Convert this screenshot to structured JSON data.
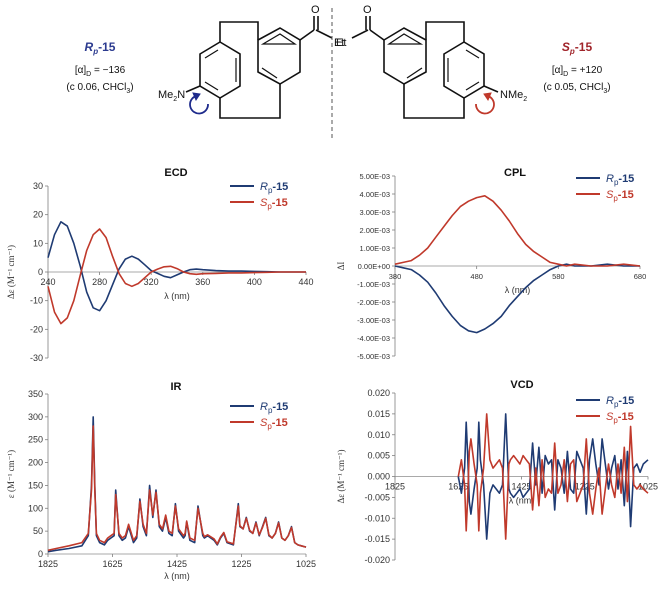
{
  "header": {
    "left": {
      "compound_prefix": "R",
      "compound_sub": "p",
      "compound_suffix": "-15",
      "rotation_line_a": "[α]",
      "rotation_line_a_sub": "D",
      "rotation_line_a_value": " = −136",
      "rotation_line_b": "(c 0.06, CHCl",
      "rotation_line_b_sub": "3",
      "rotation_line_b_end": ")",
      "color": "#2b3a8f",
      "rotation_arrow_color": "#1e2b8c"
    },
    "right": {
      "compound_prefix": "S",
      "compound_sub": "p",
      "compound_suffix": "-15",
      "rotation_line_a": "[α]",
      "rotation_line_a_sub": "D",
      "rotation_line_a_value": " = +120",
      "rotation_line_b": "(c 0.05, CHCl",
      "rotation_line_b_sub": "3",
      "rotation_line_b_end": ")",
      "color": "#a0242a",
      "rotation_arrow_color": "#c0392b"
    },
    "structure_labels": {
      "left_amine": "Me",
      "left_amine_sub": "2",
      "left_amine_end": "N",
      "left_ketone_o": "O",
      "left_ketone_r": "Et",
      "right_ketone_o": "O",
      "right_ketone_r": "Et",
      "right_amine": "NMe",
      "right_amine_sub": "2"
    }
  },
  "colors": {
    "rp": "#1f3b73",
    "sp": "#c0392b",
    "axis": "#7f7f7f",
    "zero_line": "#8c8c8c"
  },
  "chart_data": [
    {
      "id": "ecd",
      "type": "line",
      "title": "ECD",
      "xlabel": "λ (nm)",
      "ylabel": "Δε (M⁻¹ cm⁻¹)",
      "xlim": [
        240,
        440
      ],
      "ylim": [
        -30,
        30
      ],
      "xticks": [
        "240",
        "280",
        "320",
        "360",
        "400",
        "440"
      ],
      "yticks": [
        "30",
        "20",
        "10",
        "0",
        "-10",
        "-20",
        "-30"
      ],
      "legend": "top-right",
      "x_axis_at_zero": true,
      "grid": false,
      "series": [
        {
          "name": "Rp-15",
          "legend_prefix": "R",
          "legend_sub": "p",
          "legend_suffix": "-15",
          "color_key": "rp",
          "x": [
            240,
            245,
            250,
            255,
            260,
            265,
            270,
            275,
            280,
            285,
            290,
            295,
            300,
            305,
            310,
            315,
            320,
            325,
            330,
            335,
            340,
            345,
            350,
            355,
            360,
            370,
            380,
            390,
            400,
            410,
            420,
            430,
            440
          ],
          "y": [
            5,
            13,
            17.5,
            16,
            10,
            2,
            -7,
            -12.5,
            -13.5,
            -10,
            -4.5,
            1,
            4.5,
            5.5,
            4.5,
            2.5,
            0.5,
            -0.5,
            -1.5,
            -2,
            -1,
            0,
            0.8,
            1,
            0.8,
            0.5,
            0.3,
            0.3,
            0.2,
            0.1,
            0,
            0,
            0
          ]
        },
        {
          "name": "Sp-15",
          "legend_prefix": "S",
          "legend_sub": "p",
          "legend_suffix": "-15",
          "color_key": "sp",
          "x": [
            240,
            245,
            250,
            255,
            260,
            265,
            270,
            275,
            280,
            285,
            290,
            295,
            300,
            305,
            310,
            315,
            320,
            325,
            330,
            335,
            340,
            345,
            350,
            355,
            360,
            370,
            380,
            390,
            400,
            410,
            420,
            430,
            440
          ],
          "y": [
            -5,
            -14,
            -18,
            -16,
            -10,
            -1,
            7.5,
            13,
            15,
            12,
            5.5,
            -0.5,
            -4,
            -5,
            -4,
            -2,
            0,
            1,
            1.8,
            2,
            1.2,
            0,
            -0.6,
            -0.8,
            -0.6,
            -0.5,
            -0.3,
            -0.3,
            -0.2,
            -0.1,
            0,
            0,
            0
          ]
        }
      ]
    },
    {
      "id": "cpl",
      "type": "line",
      "title": "CPL",
      "xlabel": "λ (nm)",
      "ylabel": "ΔI",
      "xlim": [
        380,
        680
      ],
      "ylim": [
        -0.005,
        0.005
      ],
      "xticks": [
        "380",
        "480",
        "580",
        "680"
      ],
      "yticks": [
        "5.00E-03",
        "4.00E-03",
        "3.00E-03",
        "2.00E-03",
        "1.00E-03",
        "0.00E+00",
        "-1.00E-03",
        "-2.00E-03",
        "-3.00E-03",
        "-4.00E-03",
        "-5.00E-03"
      ],
      "legend": "top-right",
      "x_axis_at_zero": true,
      "grid": false,
      "series": [
        {
          "name": "Rp-15",
          "legend_prefix": "R",
          "legend_sub": "p",
          "legend_suffix": "-15",
          "color_key": "rp",
          "x": [
            380,
            390,
            400,
            410,
            420,
            430,
            440,
            450,
            460,
            470,
            480,
            490,
            500,
            510,
            520,
            530,
            540,
            550,
            560,
            570,
            580,
            590,
            600,
            620,
            640,
            660,
            680
          ],
          "y": [
            0,
            -0.0001,
            -0.0002,
            -0.0005,
            -0.0009,
            -0.0015,
            -0.0022,
            -0.0028,
            -0.0033,
            -0.0036,
            -0.0037,
            -0.0035,
            -0.0032,
            -0.0028,
            -0.0022,
            -0.0017,
            -0.0012,
            -0.0008,
            -0.0005,
            -0.0002,
            0,
            0.0001,
            0,
            0,
            0.0001,
            0,
            0
          ]
        },
        {
          "name": "Sp-15",
          "legend_prefix": "S",
          "legend_sub": "p",
          "legend_suffix": "-15",
          "color_key": "sp",
          "x": [
            380,
            390,
            400,
            410,
            420,
            430,
            440,
            450,
            460,
            470,
            480,
            490,
            500,
            510,
            520,
            530,
            540,
            550,
            560,
            570,
            580,
            590,
            600,
            620,
            640,
            660,
            680
          ],
          "y": [
            0.0001,
            0.0002,
            0.0003,
            0.0006,
            0.001,
            0.0016,
            0.0022,
            0.0028,
            0.0033,
            0.0036,
            0.0038,
            0.0039,
            0.0036,
            0.0031,
            0.0025,
            0.0018,
            0.0012,
            0.0008,
            0.0005,
            0.0002,
            0.0001,
            0,
            0.0001,
            0,
            0,
            0.0001,
            0
          ]
        }
      ]
    },
    {
      "id": "ir",
      "type": "line",
      "title": "IR",
      "xlabel": "λ (nm)",
      "ylabel": "ε (M⁻¹ cm⁻¹)",
      "xlim": [
        1825,
        1025
      ],
      "ylim": [
        0,
        350
      ],
      "xticks": [
        "1825",
        "1625",
        "1425",
        "1225",
        "1025"
      ],
      "yticks": [
        "350",
        "300",
        "250",
        "200",
        "150",
        "100",
        "50",
        "0"
      ],
      "legend": "top-right",
      "x_axis_at_zero": false,
      "grid": false,
      "series": [
        {
          "name": "Rp-15",
          "legend_prefix": "R",
          "legend_sub": "p",
          "legend_suffix": "-15",
          "color_key": "rp",
          "x": [
            1825,
            1800,
            1760,
            1720,
            1700,
            1690,
            1685,
            1680,
            1675,
            1665,
            1650,
            1640,
            1630,
            1620,
            1615,
            1605,
            1595,
            1585,
            1575,
            1560,
            1550,
            1540,
            1530,
            1520,
            1510,
            1500,
            1490,
            1480,
            1470,
            1460,
            1450,
            1440,
            1430,
            1420,
            1405,
            1400,
            1395,
            1385,
            1370,
            1360,
            1345,
            1340,
            1330,
            1310,
            1300,
            1290,
            1280,
            1270,
            1250,
            1235,
            1230,
            1220,
            1210,
            1200,
            1190,
            1180,
            1170,
            1160,
            1150,
            1140,
            1130,
            1120,
            1110,
            1100,
            1090,
            1080,
            1070,
            1060,
            1050,
            1040,
            1025
          ],
          "y": [
            5,
            8,
            12,
            18,
            40,
            150,
            300,
            150,
            40,
            25,
            20,
            30,
            35,
            40,
            140,
            40,
            30,
            35,
            60,
            25,
            35,
            120,
            60,
            40,
            150,
            80,
            140,
            60,
            50,
            80,
            45,
            40,
            110,
            50,
            35,
            40,
            70,
            30,
            25,
            105,
            40,
            35,
            40,
            30,
            20,
            35,
            45,
            25,
            20,
            110,
            60,
            55,
            80,
            50,
            45,
            70,
            40,
            60,
            80,
            40,
            35,
            45,
            70,
            35,
            30,
            40,
            60,
            25,
            20,
            18,
            15
          ]
        },
        {
          "name": "Sp-15",
          "legend_prefix": "S",
          "legend_sub": "p",
          "legend_suffix": "-15",
          "color_key": "sp",
          "x": [
            1825,
            1800,
            1760,
            1720,
            1700,
            1690,
            1685,
            1680,
            1675,
            1665,
            1650,
            1640,
            1630,
            1620,
            1615,
            1605,
            1595,
            1585,
            1575,
            1560,
            1550,
            1540,
            1530,
            1520,
            1510,
            1500,
            1490,
            1480,
            1470,
            1460,
            1450,
            1440,
            1430,
            1420,
            1405,
            1400,
            1395,
            1385,
            1370,
            1360,
            1345,
            1340,
            1330,
            1310,
            1300,
            1290,
            1280,
            1270,
            1250,
            1235,
            1230,
            1220,
            1210,
            1200,
            1190,
            1180,
            1170,
            1160,
            1150,
            1140,
            1130,
            1120,
            1110,
            1100,
            1090,
            1080,
            1070,
            1060,
            1050,
            1040,
            1025
          ],
          "y": [
            8,
            12,
            18,
            25,
            45,
            140,
            280,
            140,
            45,
            30,
            25,
            35,
            40,
            45,
            130,
            45,
            35,
            40,
            65,
            30,
            40,
            115,
            65,
            45,
            140,
            85,
            135,
            65,
            55,
            85,
            50,
            45,
            105,
            55,
            40,
            45,
            72,
            35,
            30,
            100,
            45,
            38,
            42,
            33,
            22,
            37,
            47,
            27,
            22,
            105,
            62,
            55,
            78,
            52,
            45,
            68,
            42,
            58,
            78,
            42,
            35,
            45,
            68,
            35,
            30,
            40,
            58,
            25,
            20,
            18,
            15
          ]
        }
      ]
    },
    {
      "id": "vcd",
      "type": "line",
      "title": "VCD",
      "xlabel": "λ (nm)",
      "ylabel": "Δε (M⁻¹ cm⁻¹)",
      "xlim": [
        1825,
        1025
      ],
      "ylim": [
        -0.02,
        0.02
      ],
      "xticks": [
        "1825",
        "1625",
        "1425",
        "1225",
        "1025"
      ],
      "yticks": [
        "0.020",
        "0.015",
        "0.010",
        "0.005",
        "0.000",
        "-0.005",
        "-0.010",
        "-0.015",
        "-0.020"
      ],
      "legend": "top-right",
      "x_axis_at_zero": true,
      "grid": false,
      "series": [
        {
          "name": "Rp-15",
          "legend_prefix": "R",
          "legend_sub": "p",
          "legend_suffix": "-15",
          "color_key": "rp",
          "x": [
            1625,
            1615,
            1605,
            1600,
            1595,
            1590,
            1585,
            1575,
            1565,
            1560,
            1555,
            1545,
            1535,
            1525,
            1515,
            1505,
            1495,
            1485,
            1475,
            1470,
            1465,
            1460,
            1450,
            1440,
            1430,
            1420,
            1410,
            1400,
            1390,
            1380,
            1370,
            1360,
            1350,
            1340,
            1330,
            1320,
            1310,
            1300,
            1290,
            1280,
            1270,
            1260,
            1250,
            1240,
            1230,
            1220,
            1210,
            1200,
            1190,
            1180,
            1170,
            1160,
            1150,
            1140,
            1130,
            1120,
            1110,
            1100,
            1090,
            1080,
            1070,
            1060,
            1050,
            1040,
            1025
          ],
          "y": [
            0,
            -0.004,
            0.002,
            0.013,
            0.005,
            -0.006,
            -0.009,
            -0.003,
            0.002,
            0.013,
            0.004,
            -0.002,
            -0.015,
            -0.004,
            -0.002,
            -0.003,
            -0.004,
            -0.002,
            0.015,
            0.006,
            -0.003,
            -0.004,
            -0.005,
            -0.004,
            -0.003,
            -0.005,
            -0.004,
            -0.003,
            0.008,
            -0.002,
            0.007,
            -0.004,
            0.005,
            0.003,
            0.004,
            -0.008,
            0.004,
            0.002,
            -0.004,
            0.006,
            -0.003,
            -0.004,
            0.006,
            0.004,
            0.002,
            -0.009,
            0.004,
            0.009,
            0.003,
            -0.002,
            0.009,
            0.003,
            -0.003,
            0.002,
            0.005,
            -0.003,
            0.004,
            -0.007,
            0.006,
            -0.012,
            0.002,
            0.003,
            0.001,
            0.003,
            0.004
          ]
        },
        {
          "name": "Sp-15",
          "legend_prefix": "S",
          "legend_sub": "p",
          "legend_suffix": "-15",
          "color_key": "sp",
          "x": [
            1625,
            1615,
            1605,
            1600,
            1595,
            1590,
            1585,
            1575,
            1565,
            1560,
            1555,
            1545,
            1535,
            1525,
            1515,
            1505,
            1495,
            1485,
            1475,
            1470,
            1465,
            1460,
            1450,
            1440,
            1430,
            1420,
            1410,
            1400,
            1390,
            1380,
            1370,
            1360,
            1350,
            1340,
            1330,
            1320,
            1310,
            1300,
            1290,
            1280,
            1270,
            1260,
            1250,
            1240,
            1230,
            1220,
            1210,
            1200,
            1190,
            1180,
            1170,
            1160,
            1150,
            1140,
            1130,
            1120,
            1110,
            1100,
            1090,
            1080,
            1070,
            1060,
            1050,
            1040,
            1025
          ],
          "y": [
            0,
            0.004,
            -0.002,
            -0.013,
            -0.005,
            0.006,
            0.009,
            0.003,
            -0.002,
            -0.013,
            -0.004,
            0.002,
            0.015,
            0.004,
            0.002,
            0.003,
            0.004,
            0.002,
            -0.015,
            -0.006,
            0.003,
            0.004,
            0.005,
            0.004,
            0.003,
            0.005,
            0.004,
            0.003,
            -0.008,
            0.002,
            -0.007,
            0.004,
            -0.005,
            -0.003,
            -0.004,
            0.008,
            -0.004,
            -0.002,
            0.004,
            -0.006,
            0.003,
            0.004,
            -0.006,
            -0.004,
            -0.002,
            0.009,
            -0.004,
            -0.009,
            -0.003,
            0.002,
            -0.009,
            -0.003,
            0.003,
            -0.002,
            -0.005,
            0.003,
            -0.004,
            0.007,
            -0.006,
            0.012,
            -0.002,
            -0.003,
            -0.002,
            -0.003,
            -0.004
          ]
        }
      ]
    }
  ]
}
